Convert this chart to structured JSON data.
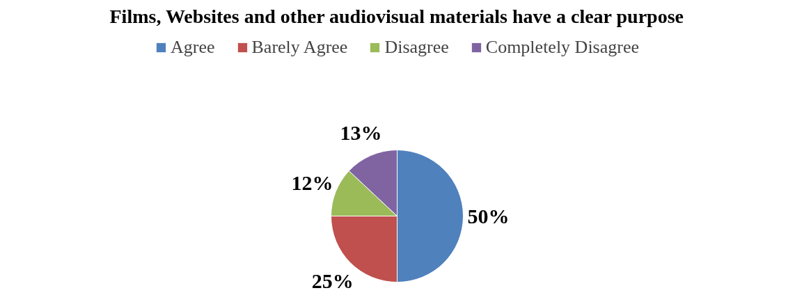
{
  "chart_data": {
    "type": "pie",
    "title": "Films, Websites and other audiovisual materials have a clear purpose",
    "categories": [
      "Agree",
      "Barely Agree",
      "Disagree",
      "Completely Disagree"
    ],
    "values": [
      50,
      25,
      12,
      13
    ],
    "value_labels": [
      "50%",
      "25%",
      "12%",
      "13%"
    ],
    "colors": [
      "#4f81bd",
      "#c0504d",
      "#9bbb59",
      "#8064a2"
    ],
    "legend": "top"
  }
}
